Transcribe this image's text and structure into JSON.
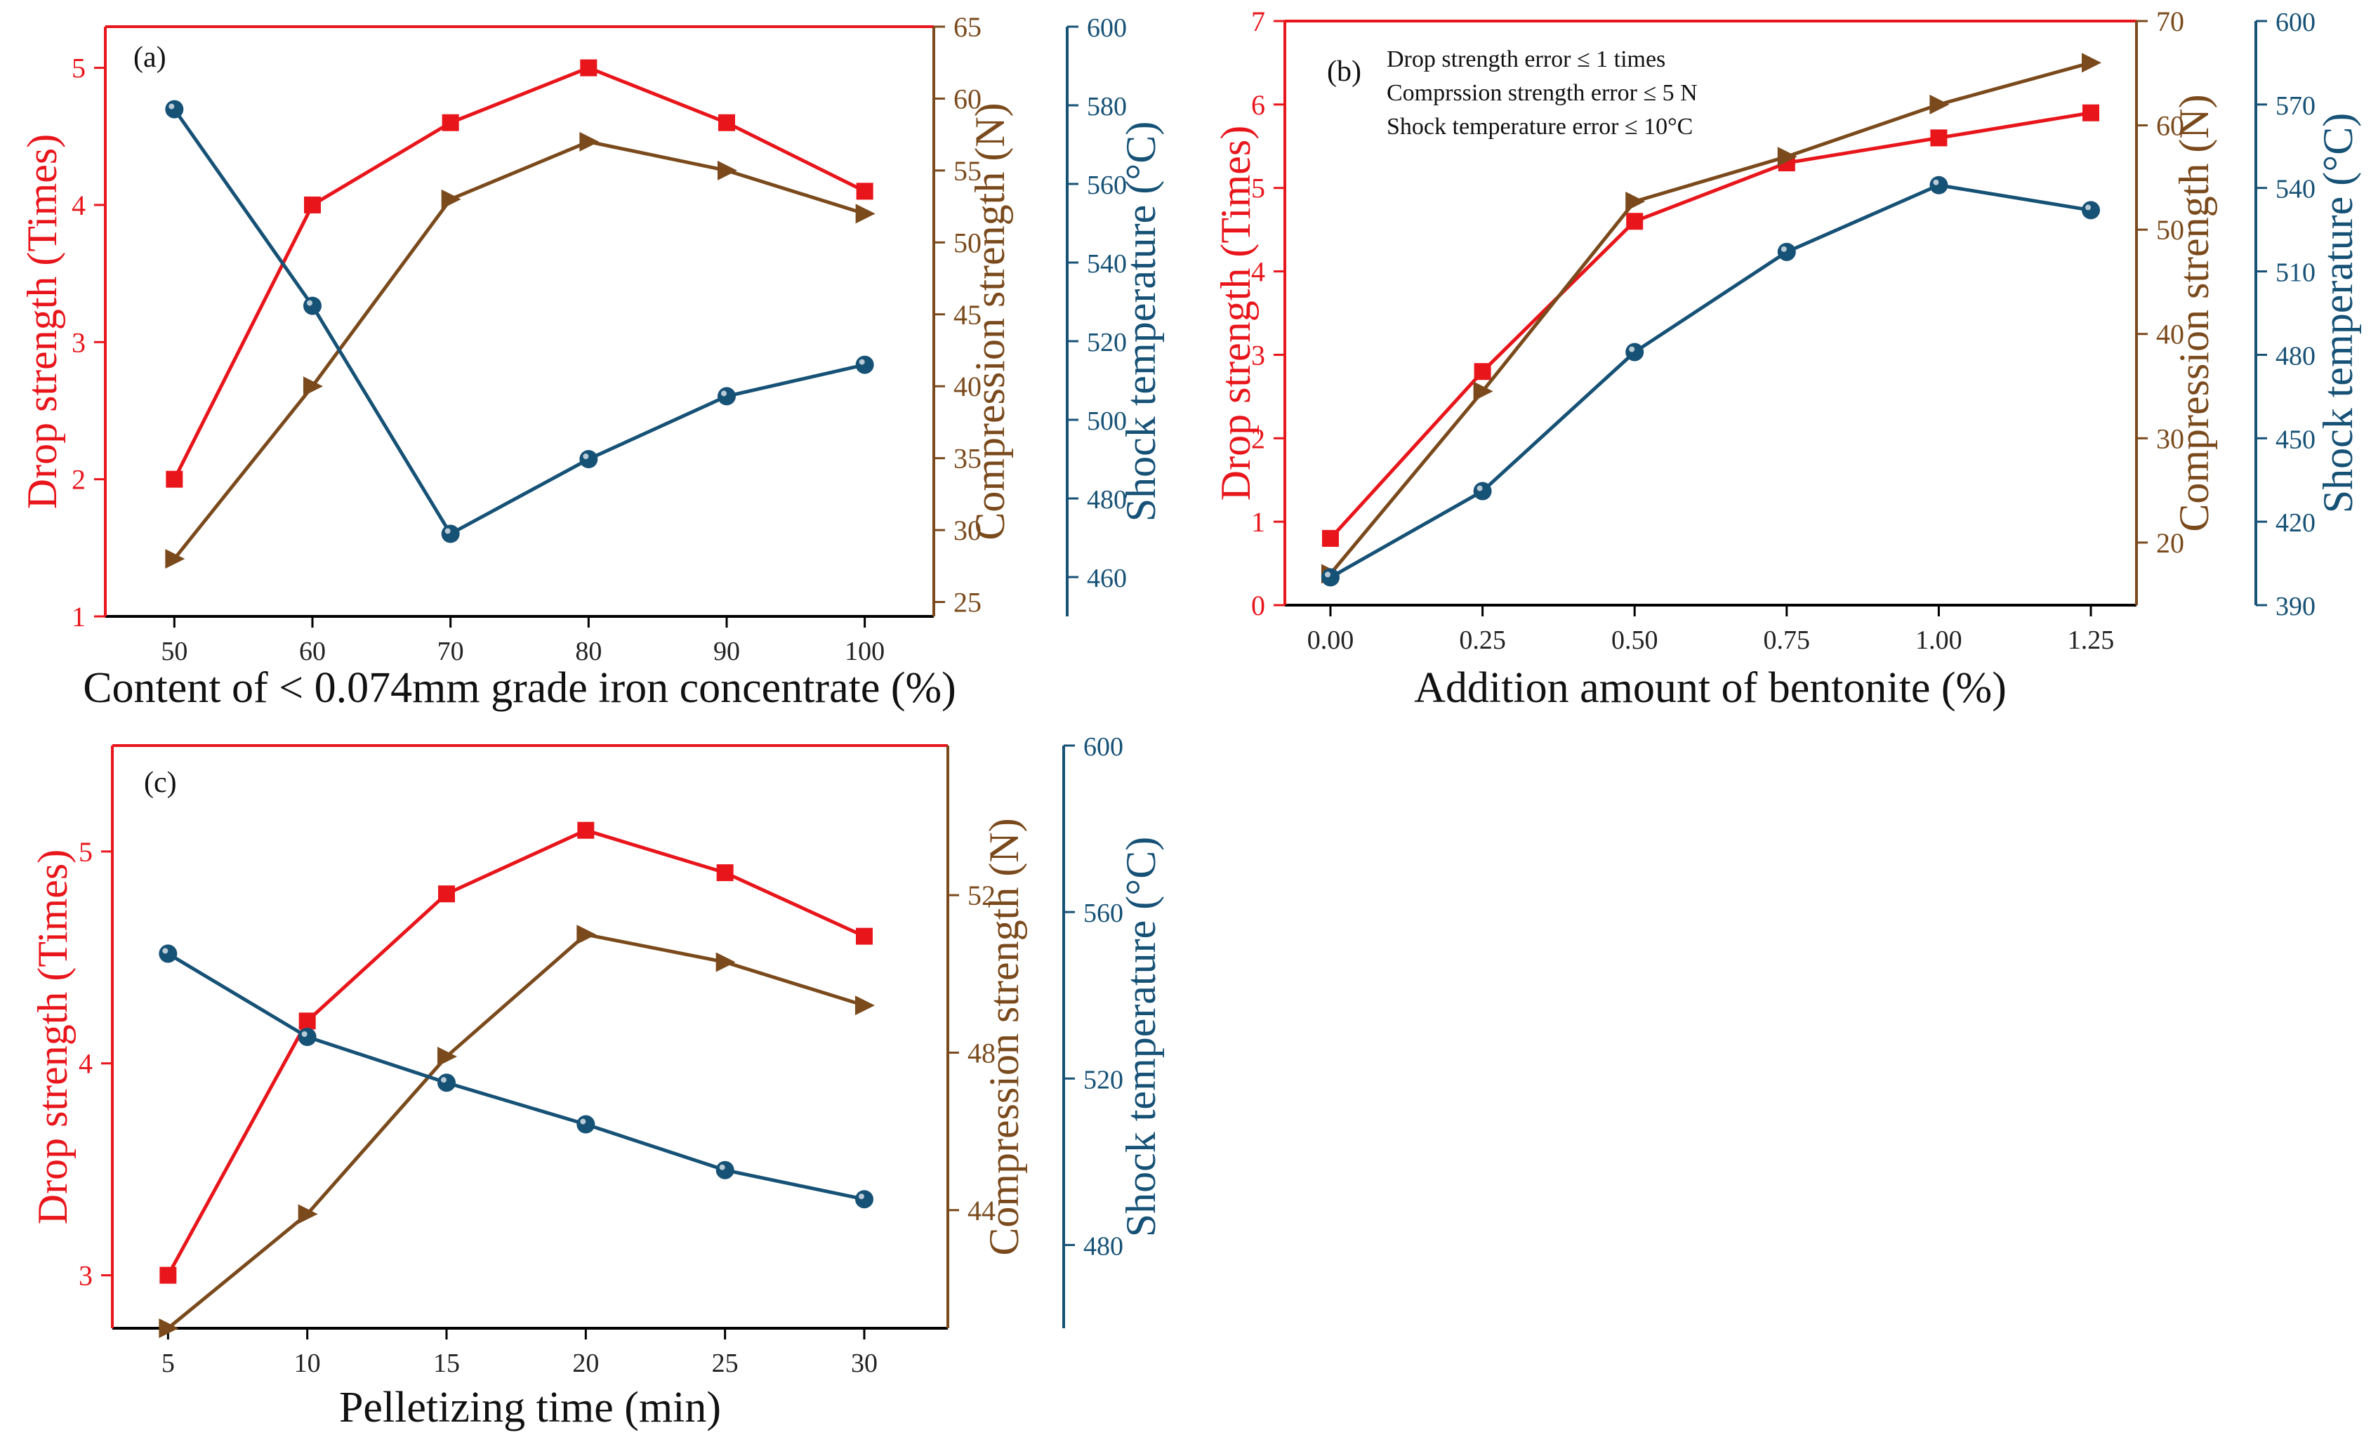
{
  "figure": "Three multi-axis line charts (a), (b), (c)",
  "colors": {
    "drop": "#e8151b",
    "compression": "#7a4a1c",
    "shock": "#165176",
    "frame": "#000000"
  },
  "chart_data": [
    {
      "id": "a",
      "type": "line",
      "panel_label": "(a)",
      "xlabel": "Content of < 0.074mm grade iron concentrate (%)",
      "xlim": [
        45,
        105
      ],
      "x_ticks": [
        50,
        60,
        70,
        80,
        90,
        100
      ],
      "x": [
        50,
        60,
        70,
        80,
        90,
        100
      ],
      "axes": {
        "drop": {
          "label": "Drop strength (Times)",
          "lim": [
            1,
            5.3
          ],
          "ticks": [
            1,
            2,
            3,
            4,
            5
          ]
        },
        "compression": {
          "label": "Compression strength (N)",
          "lim": [
            24,
            65
          ],
          "ticks": [
            25,
            30,
            35,
            40,
            45,
            50,
            55,
            60,
            65
          ]
        },
        "shock": {
          "label": "Shock temperature (°C)",
          "lim": [
            450,
            600
          ],
          "ticks": [
            460,
            480,
            500,
            520,
            540,
            560,
            580,
            600
          ]
        }
      },
      "series": [
        {
          "name": "Drop strength",
          "axis": "drop",
          "marker": "square",
          "values": [
            2.0,
            4.0,
            4.6,
            5.0,
            4.6,
            4.1
          ]
        },
        {
          "name": "Compression strength",
          "axis": "compression",
          "marker": "triangle-right",
          "values": [
            28.0,
            40.0,
            53.0,
            57.0,
            55.0,
            52.0
          ]
        },
        {
          "name": "Shock temperature",
          "axis": "shock",
          "marker": "sphere",
          "values": [
            579,
            529,
            471,
            490,
            506,
            514
          ]
        }
      ]
    },
    {
      "id": "b",
      "type": "line",
      "panel_label": "(b)",
      "xlabel": "Addition amount of bentonite (%)",
      "xlim": [
        -0.075,
        1.325
      ],
      "x_ticks": [
        0.0,
        0.25,
        0.5,
        0.75,
        1.0,
        1.25
      ],
      "x_tick_labels": [
        "0.00",
        "0.25",
        "0.50",
        "0.75",
        "1.00",
        "1.25"
      ],
      "x": [
        0.0,
        0.25,
        0.5,
        0.75,
        1.0,
        1.25
      ],
      "annotations": [
        "Drop strength error ≤ 1 times",
        "Comprssion strength error ≤ 5 N",
        "Shock temperature error ≤ 10°C"
      ],
      "axes": {
        "drop": {
          "label": "Drop strength (Times)",
          "lim": [
            0,
            7
          ],
          "ticks": [
            0,
            1,
            2,
            3,
            4,
            5,
            6,
            7
          ]
        },
        "compression": {
          "label": "Compression strength (N)",
          "lim": [
            14,
            70
          ],
          "ticks": [
            20,
            30,
            40,
            50,
            60,
            70
          ]
        },
        "shock": {
          "label": "Shock temperature (°C)",
          "lim": [
            390,
            600
          ],
          "ticks": [
            390,
            420,
            450,
            480,
            510,
            540,
            570,
            600
          ]
        }
      },
      "series": [
        {
          "name": "Drop strength",
          "axis": "drop",
          "marker": "square",
          "values": [
            0.8,
            2.8,
            4.6,
            5.3,
            5.6,
            5.9
          ]
        },
        {
          "name": "Compression strength",
          "axis": "compression",
          "marker": "triangle-right",
          "values": [
            17.0,
            34.5,
            52.7,
            57.0,
            62.0,
            66.0
          ]
        },
        {
          "name": "Shock temperature",
          "axis": "shock",
          "marker": "sphere",
          "values": [
            400,
            431,
            481,
            517,
            541,
            532
          ]
        }
      ]
    },
    {
      "id": "c",
      "type": "line",
      "panel_label": "(c)",
      "xlabel": "Pelletizing time (min)",
      "xlim": [
        3.0,
        33.0
      ],
      "x_ticks": [
        5,
        10,
        15,
        20,
        25,
        30
      ],
      "x": [
        5,
        10,
        15,
        20,
        25,
        30
      ],
      "axes": {
        "drop": {
          "label": "Drop strength (Times)",
          "lim": [
            2.75,
            5.5
          ],
          "ticks": [
            3,
            4,
            5
          ]
        },
        "compression": {
          "label": "Compression strength (N)",
          "lim": [
            41.0,
            55.8
          ],
          "ticks": [
            44,
            48,
            52
          ]
        },
        "shock": {
          "label": "Shock temperature (°C)",
          "lim": [
            460,
            600
          ],
          "ticks": [
            480,
            520,
            560,
            600
          ]
        }
      },
      "series": [
        {
          "name": "Drop strength",
          "axis": "drop",
          "marker": "square",
          "values": [
            3.0,
            4.2,
            4.8,
            5.1,
            4.9,
            4.6
          ]
        },
        {
          "name": "Compression strength",
          "axis": "compression",
          "marker": "triangle-right",
          "values": [
            41.0,
            43.9,
            47.9,
            51.0,
            50.3,
            49.2
          ]
        },
        {
          "name": "Shock temperature",
          "axis": "shock",
          "marker": "sphere",
          "values": [
            550,
            530,
            519,
            509,
            498,
            491
          ]
        }
      ]
    }
  ]
}
